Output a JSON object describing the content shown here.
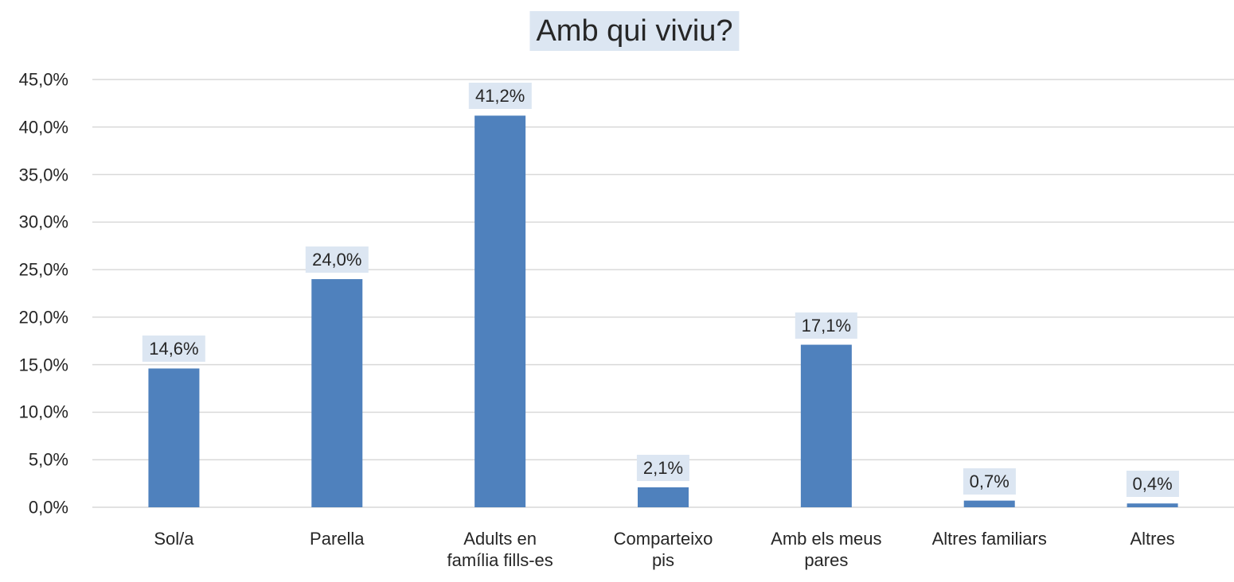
{
  "chart_data": {
    "type": "bar",
    "title": "Amb qui viviu?",
    "categories": [
      "Sol/a",
      "Parella",
      "Adults en família fills-es",
      "Comparteixo pis",
      "Amb els meus pares",
      "Altres familiars",
      "Altres"
    ],
    "values": [
      14.6,
      24.0,
      41.2,
      2.1,
      17.1,
      0.7,
      0.4
    ],
    "value_labels": [
      "14,6%",
      "24,0%",
      "41,2%",
      "2,1%",
      "17,1%",
      "0,7%",
      "0,4%"
    ],
    "color": "#4f81bd",
    "ylim": [
      0,
      45
    ],
    "yticks": [
      {
        "value": 0,
        "label": "0,0%"
      },
      {
        "value": 5,
        "label": "5,0%"
      },
      {
        "value": 10,
        "label": "10,0%"
      },
      {
        "value": 15,
        "label": "15,0%"
      },
      {
        "value": 20,
        "label": "20,0%"
      },
      {
        "value": 25,
        "label": "25,0%"
      },
      {
        "value": 30,
        "label": "30,0%"
      },
      {
        "value": 35,
        "label": "35,0%"
      },
      {
        "value": 40,
        "label": "40,0%"
      },
      {
        "value": 45,
        "label": "45,0%"
      }
    ],
    "grid": true
  }
}
